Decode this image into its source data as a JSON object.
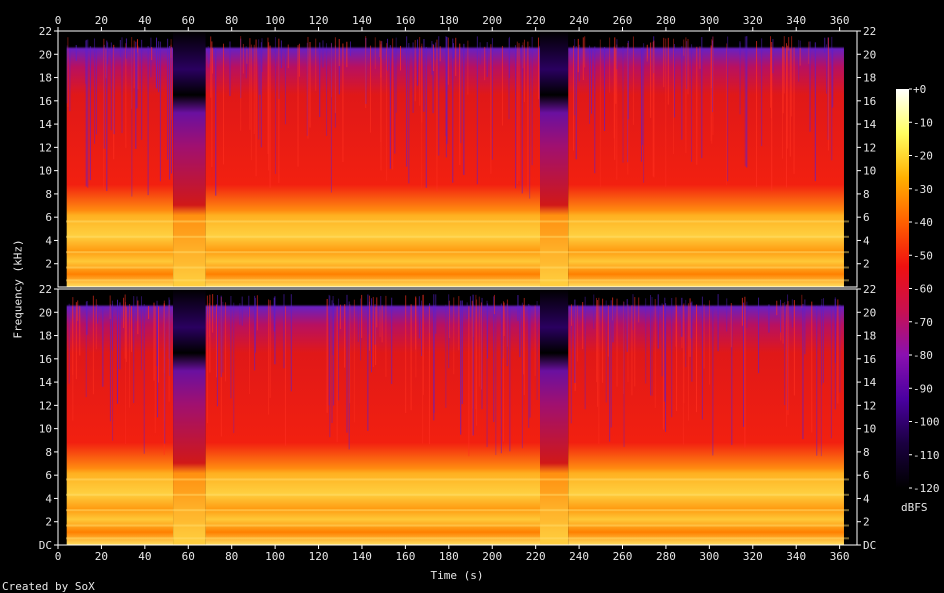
{
  "chart_data": {
    "type": "heatmap",
    "title": "",
    "xlabel": "Time (s)",
    "ylabel": "Frequency (kHz)",
    "xlim": [
      0,
      368
    ],
    "ylim": [
      0,
      22
    ],
    "x_ticks": [
      "0",
      "20",
      "40",
      "60",
      "80",
      "100",
      "120",
      "140",
      "160",
      "180",
      "200",
      "220",
      "240",
      "260",
      "280",
      "300",
      "320",
      "340",
      "360"
    ],
    "y_ticks_top": [
      "22",
      "20",
      "18",
      "16",
      "14",
      "12",
      "10",
      "8",
      "6",
      "4",
      "2"
    ],
    "y_ticks_bottom": [
      "22",
      "20",
      "18",
      "16",
      "14",
      "12",
      "10",
      "8",
      "6",
      "4",
      "2",
      "DC"
    ],
    "channels": [
      "channel 1",
      "channel 2"
    ],
    "colorbar": {
      "unit": "dBFS",
      "range": [
        -120,
        0
      ],
      "ticks": [
        "+0",
        "-10",
        "-20",
        "-30",
        "-40",
        "-50",
        "-60",
        "-70",
        "-80",
        "-90",
        "-100",
        "-110",
        "-120"
      ],
      "colors": [
        "#000000",
        "#1a0040",
        "#4a00a0",
        "#8a10b0",
        "#c81050",
        "#f01010",
        "#ff6000",
        "#ffb000",
        "#ffff60",
        "#ffffff"
      ]
    },
    "segments_seconds": [
      [
        4,
        53,
        "loud"
      ],
      [
        53,
        68,
        "quiet"
      ],
      [
        68,
        222,
        "loud"
      ],
      [
        222,
        235,
        "quiet"
      ],
      [
        235,
        362,
        "loud"
      ]
    ]
  },
  "credit": "Created by SoX"
}
